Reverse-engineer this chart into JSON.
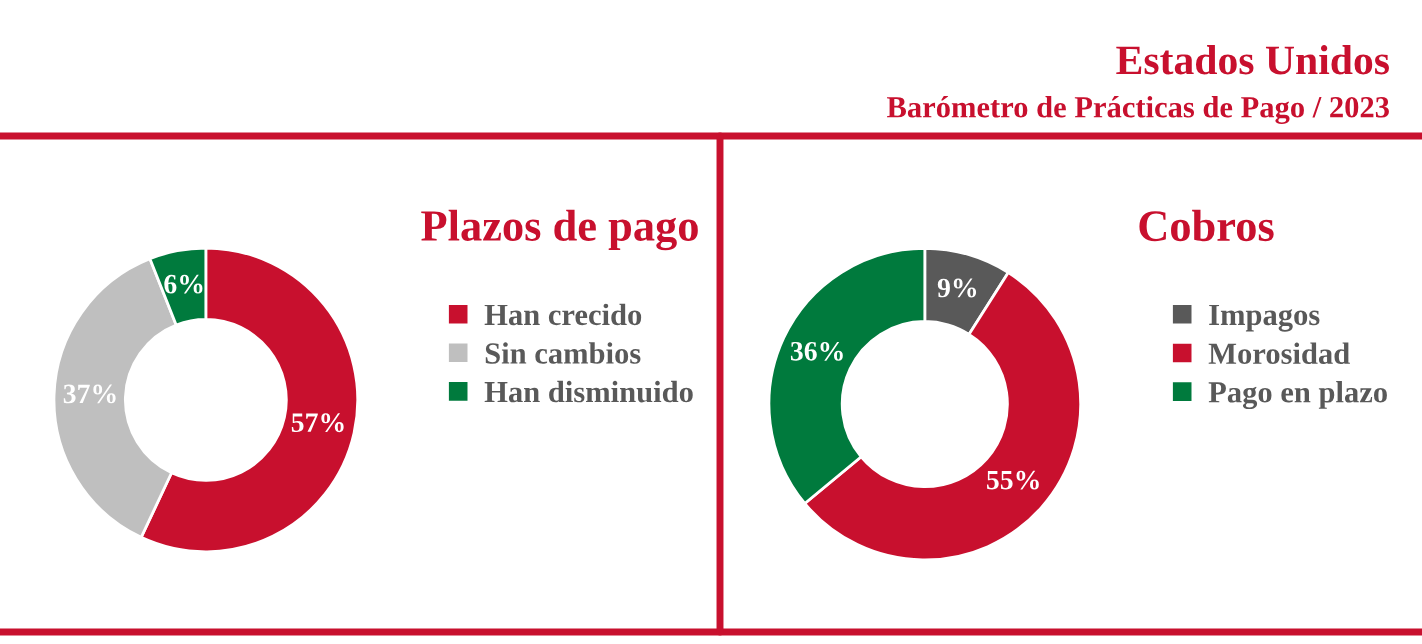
{
  "chart_data": [
    {
      "type": "donut",
      "title": "Plazos de pago",
      "categories": [
        "Han crecido",
        "Sin cambios",
        "Han disminuido"
      ],
      "values": [
        57,
        37,
        6
      ],
      "value_labels": [
        "57%",
        "37%",
        "6%"
      ],
      "colors": [
        "#c8102e",
        "#bfbfbf",
        "#007a3d"
      ],
      "legend": "right"
    },
    {
      "type": "donut",
      "title": "Cobros",
      "categories": [
        "Impagos",
        "Morosidad",
        "Pago en plazo"
      ],
      "values": [
        9,
        55,
        36
      ],
      "value_labels": [
        "9%",
        "55%",
        "36%"
      ],
      "colors": [
        "#595959",
        "#c8102e",
        "#007a3d"
      ],
      "legend": "right",
      "annotations": [
        "Estados Unidos",
        "Barómetro de Prácticas de Pago / 2023"
      ]
    }
  ]
}
